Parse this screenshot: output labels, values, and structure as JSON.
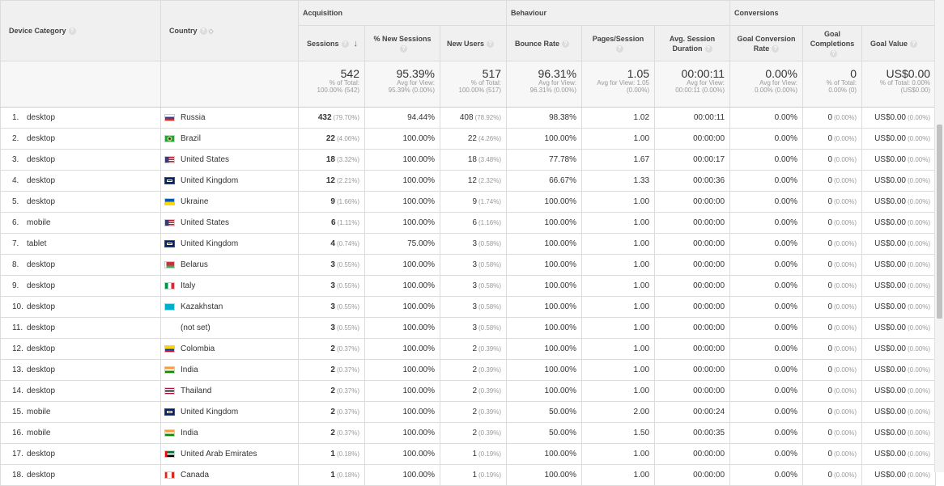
{
  "groups": {
    "acquisition": "Acquisition",
    "behaviour": "Behaviour",
    "conversions": "Conversions"
  },
  "headers": {
    "device": "Device Category",
    "country": "Country",
    "sessions": "Sessions",
    "new_sessions": "% New Sessions",
    "new_users": "New Users",
    "bounce_rate": "Bounce Rate",
    "pages_session": "Pages/Session",
    "avg_duration": "Avg. Session Duration",
    "goal_conv_rate": "Goal Conversion Rate",
    "goal_completions": "Goal Completions",
    "goal_value": "Goal Value",
    "help_glyph": "?"
  },
  "totals": {
    "sessions": {
      "value": "542",
      "sub1": "% of Total:",
      "sub2": "100.00% (542)"
    },
    "new_sessions": {
      "value": "95.39%",
      "sub1": "Avg for View:",
      "sub2": "95.39% (0.00%)"
    },
    "new_users": {
      "value": "517",
      "sub1": "% of Total:",
      "sub2": "100.00% (517)"
    },
    "bounce_rate": {
      "value": "96.31%",
      "sub1": "Avg for View:",
      "sub2": "96.31% (0.00%)"
    },
    "pages_session": {
      "value": "1.05",
      "sub1": "Avg for View: 1.05",
      "sub2": "(0.00%)"
    },
    "avg_duration": {
      "value": "00:00:11",
      "sub1": "Avg for View:",
      "sub2": "00:00:11 (0.00%)"
    },
    "goal_conv_rate": {
      "value": "0.00%",
      "sub1": "Avg for View:",
      "sub2": "0.00% (0.00%)"
    },
    "goal_completions": {
      "value": "0",
      "sub1": "% of Total:",
      "sub2": "0.00% (0)"
    },
    "goal_value": {
      "value": "US$0.00",
      "sub1": "% of Total: 0.00%",
      "sub2": "(US$0.00)"
    }
  },
  "rows": [
    {
      "idx": "1.",
      "device": "desktop",
      "country": "Russia",
      "flag": "russia",
      "sessions": "432",
      "sessions_pct": "(79.70%)",
      "new_sessions": "94.44%",
      "new_users": "408",
      "new_users_pct": "(78.92%)",
      "bounce": "98.38%",
      "pages": "1.02",
      "duration": "00:00:11",
      "conv": "0.00%",
      "comp": "0",
      "comp_pct": "(0.00%)",
      "value": "US$0.00",
      "value_pct": "(0.00%)"
    },
    {
      "idx": "2.",
      "device": "desktop",
      "country": "Brazil",
      "flag": "brazil",
      "sessions": "22",
      "sessions_pct": "(4.06%)",
      "new_sessions": "100.00%",
      "new_users": "22",
      "new_users_pct": "(4.26%)",
      "bounce": "100.00%",
      "pages": "1.00",
      "duration": "00:00:00",
      "conv": "0.00%",
      "comp": "0",
      "comp_pct": "(0.00%)",
      "value": "US$0.00",
      "value_pct": "(0.00%)"
    },
    {
      "idx": "3.",
      "device": "desktop",
      "country": "United States",
      "flag": "usa",
      "sessions": "18",
      "sessions_pct": "(3.32%)",
      "new_sessions": "100.00%",
      "new_users": "18",
      "new_users_pct": "(3.48%)",
      "bounce": "77.78%",
      "pages": "1.67",
      "duration": "00:00:17",
      "conv": "0.00%",
      "comp": "0",
      "comp_pct": "(0.00%)",
      "value": "US$0.00",
      "value_pct": "(0.00%)"
    },
    {
      "idx": "4.",
      "device": "desktop",
      "country": "United Kingdom",
      "flag": "uk",
      "sessions": "12",
      "sessions_pct": "(2.21%)",
      "new_sessions": "100.00%",
      "new_users": "12",
      "new_users_pct": "(2.32%)",
      "bounce": "66.67%",
      "pages": "1.33",
      "duration": "00:00:36",
      "conv": "0.00%",
      "comp": "0",
      "comp_pct": "(0.00%)",
      "value": "US$0.00",
      "value_pct": "(0.00%)"
    },
    {
      "idx": "5.",
      "device": "desktop",
      "country": "Ukraine",
      "flag": "ukraine",
      "sessions": "9",
      "sessions_pct": "(1.66%)",
      "new_sessions": "100.00%",
      "new_users": "9",
      "new_users_pct": "(1.74%)",
      "bounce": "100.00%",
      "pages": "1.00",
      "duration": "00:00:00",
      "conv": "0.00%",
      "comp": "0",
      "comp_pct": "(0.00%)",
      "value": "US$0.00",
      "value_pct": "(0.00%)"
    },
    {
      "idx": "6.",
      "device": "mobile",
      "country": "United States",
      "flag": "usa",
      "sessions": "6",
      "sessions_pct": "(1.11%)",
      "new_sessions": "100.00%",
      "new_users": "6",
      "new_users_pct": "(1.16%)",
      "bounce": "100.00%",
      "pages": "1.00",
      "duration": "00:00:00",
      "conv": "0.00%",
      "comp": "0",
      "comp_pct": "(0.00%)",
      "value": "US$0.00",
      "value_pct": "(0.00%)"
    },
    {
      "idx": "7.",
      "device": "tablet",
      "country": "United Kingdom",
      "flag": "uk",
      "sessions": "4",
      "sessions_pct": "(0.74%)",
      "new_sessions": "75.00%",
      "new_users": "3",
      "new_users_pct": "(0.58%)",
      "bounce": "100.00%",
      "pages": "1.00",
      "duration": "00:00:00",
      "conv": "0.00%",
      "comp": "0",
      "comp_pct": "(0.00%)",
      "value": "US$0.00",
      "value_pct": "(0.00%)"
    },
    {
      "idx": "8.",
      "device": "desktop",
      "country": "Belarus",
      "flag": "belarus",
      "sessions": "3",
      "sessions_pct": "(0.55%)",
      "new_sessions": "100.00%",
      "new_users": "3",
      "new_users_pct": "(0.58%)",
      "bounce": "100.00%",
      "pages": "1.00",
      "duration": "00:00:00",
      "conv": "0.00%",
      "comp": "0",
      "comp_pct": "(0.00%)",
      "value": "US$0.00",
      "value_pct": "(0.00%)"
    },
    {
      "idx": "9.",
      "device": "desktop",
      "country": "Italy",
      "flag": "italy",
      "sessions": "3",
      "sessions_pct": "(0.55%)",
      "new_sessions": "100.00%",
      "new_users": "3",
      "new_users_pct": "(0.58%)",
      "bounce": "100.00%",
      "pages": "1.00",
      "duration": "00:00:00",
      "conv": "0.00%",
      "comp": "0",
      "comp_pct": "(0.00%)",
      "value": "US$0.00",
      "value_pct": "(0.00%)"
    },
    {
      "idx": "10.",
      "device": "desktop",
      "country": "Kazakhstan",
      "flag": "kazakhstan",
      "sessions": "3",
      "sessions_pct": "(0.55%)",
      "new_sessions": "100.00%",
      "new_users": "3",
      "new_users_pct": "(0.58%)",
      "bounce": "100.00%",
      "pages": "1.00",
      "duration": "00:00:00",
      "conv": "0.00%",
      "comp": "0",
      "comp_pct": "(0.00%)",
      "value": "US$0.00",
      "value_pct": "(0.00%)"
    },
    {
      "idx": "11.",
      "device": "desktop",
      "country": "(not set)",
      "flag": "none",
      "sessions": "3",
      "sessions_pct": "(0.55%)",
      "new_sessions": "100.00%",
      "new_users": "3",
      "new_users_pct": "(0.58%)",
      "bounce": "100.00%",
      "pages": "1.00",
      "duration": "00:00:00",
      "conv": "0.00%",
      "comp": "0",
      "comp_pct": "(0.00%)",
      "value": "US$0.00",
      "value_pct": "(0.00%)"
    },
    {
      "idx": "12.",
      "device": "desktop",
      "country": "Colombia",
      "flag": "colombia",
      "sessions": "2",
      "sessions_pct": "(0.37%)",
      "new_sessions": "100.00%",
      "new_users": "2",
      "new_users_pct": "(0.39%)",
      "bounce": "100.00%",
      "pages": "1.00",
      "duration": "00:00:00",
      "conv": "0.00%",
      "comp": "0",
      "comp_pct": "(0.00%)",
      "value": "US$0.00",
      "value_pct": "(0.00%)"
    },
    {
      "idx": "13.",
      "device": "desktop",
      "country": "India",
      "flag": "india",
      "sessions": "2",
      "sessions_pct": "(0.37%)",
      "new_sessions": "100.00%",
      "new_users": "2",
      "new_users_pct": "(0.39%)",
      "bounce": "100.00%",
      "pages": "1.00",
      "duration": "00:00:00",
      "conv": "0.00%",
      "comp": "0",
      "comp_pct": "(0.00%)",
      "value": "US$0.00",
      "value_pct": "(0.00%)"
    },
    {
      "idx": "14.",
      "device": "desktop",
      "country": "Thailand",
      "flag": "thailand",
      "sessions": "2",
      "sessions_pct": "(0.37%)",
      "new_sessions": "100.00%",
      "new_users": "2",
      "new_users_pct": "(0.39%)",
      "bounce": "100.00%",
      "pages": "1.00",
      "duration": "00:00:00",
      "conv": "0.00%",
      "comp": "0",
      "comp_pct": "(0.00%)",
      "value": "US$0.00",
      "value_pct": "(0.00%)"
    },
    {
      "idx": "15.",
      "device": "mobile",
      "country": "United Kingdom",
      "flag": "uk",
      "sessions": "2",
      "sessions_pct": "(0.37%)",
      "new_sessions": "100.00%",
      "new_users": "2",
      "new_users_pct": "(0.39%)",
      "bounce": "50.00%",
      "pages": "2.00",
      "duration": "00:00:24",
      "conv": "0.00%",
      "comp": "0",
      "comp_pct": "(0.00%)",
      "value": "US$0.00",
      "value_pct": "(0.00%)"
    },
    {
      "idx": "16.",
      "device": "mobile",
      "country": "India",
      "flag": "india",
      "sessions": "2",
      "sessions_pct": "(0.37%)",
      "new_sessions": "100.00%",
      "new_users": "2",
      "new_users_pct": "(0.39%)",
      "bounce": "50.00%",
      "pages": "1.50",
      "duration": "00:00:35",
      "conv": "0.00%",
      "comp": "0",
      "comp_pct": "(0.00%)",
      "value": "US$0.00",
      "value_pct": "(0.00%)"
    },
    {
      "idx": "17.",
      "device": "desktop",
      "country": "United Arab Emirates",
      "flag": "uae",
      "sessions": "1",
      "sessions_pct": "(0.18%)",
      "new_sessions": "100.00%",
      "new_users": "1",
      "new_users_pct": "(0.19%)",
      "bounce": "100.00%",
      "pages": "1.00",
      "duration": "00:00:00",
      "conv": "0.00%",
      "comp": "0",
      "comp_pct": "(0.00%)",
      "value": "US$0.00",
      "value_pct": "(0.00%)"
    },
    {
      "idx": "18.",
      "device": "desktop",
      "country": "Canada",
      "flag": "canada",
      "sessions": "1",
      "sessions_pct": "(0.18%)",
      "new_sessions": "100.00%",
      "new_users": "1",
      "new_users_pct": "(0.19%)",
      "bounce": "100.00%",
      "pages": "1.00",
      "duration": "00:00:00",
      "conv": "0.00%",
      "comp": "0",
      "comp_pct": "(0.00%)",
      "value": "US$0.00",
      "value_pct": "(0.00%)"
    }
  ]
}
